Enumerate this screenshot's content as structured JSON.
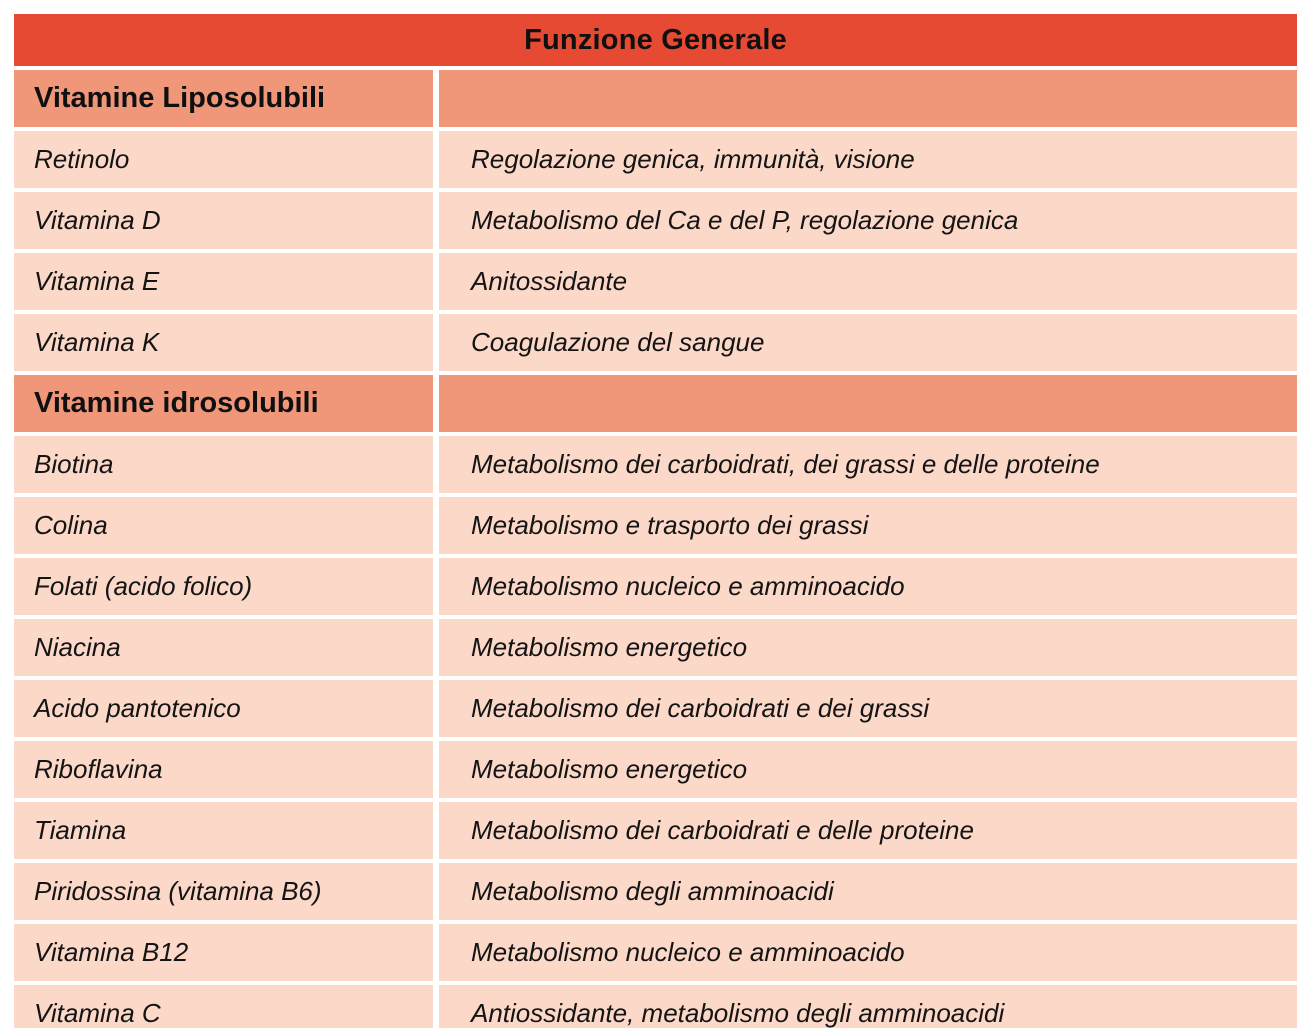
{
  "table": {
    "header": "Funzione Generale",
    "colors": {
      "header_bg": "#E64A33",
      "section_bg": "#F0977A",
      "row_bg": "#FBD8C8",
      "gridline": "#FFFFFF",
      "text": "#141414"
    },
    "sections": [
      {
        "title": "Vitamine Liposolubili",
        "rows": [
          {
            "name": "Retinolo",
            "funzione": "Regolazione genica, immunità, visione"
          },
          {
            "name": "Vitamina D",
            "funzione": "Metabolismo del Ca e del P, regolazione genica"
          },
          {
            "name": "Vitamina E",
            "funzione": "Anitossidante"
          },
          {
            "name": "Vitamina K",
            "funzione": "Coagulazione del sangue"
          }
        ]
      },
      {
        "title": "Vitamine idrosolubili",
        "rows": [
          {
            "name": "Biotina",
            "funzione": "Metabolismo dei carboidrati, dei grassi e delle proteine"
          },
          {
            "name": "Colina",
            "funzione": "Metabolismo e trasporto dei grassi"
          },
          {
            "name": "Folati (acido folico)",
            "funzione": "Metabolismo nucleico e amminoacido"
          },
          {
            "name": "Niacina",
            "funzione": "Metabolismo energetico"
          },
          {
            "name": "Acido pantotenico",
            "funzione": "Metabolismo dei carboidrati e dei grassi"
          },
          {
            "name": "Riboflavina",
            "funzione": "Metabolismo energetico"
          },
          {
            "name": "Tiamina",
            "funzione": "Metabolismo dei carboidrati e delle proteine"
          },
          {
            "name": "Piridossina (vitamina B6)",
            "funzione": "Metabolismo degli amminoacidi"
          },
          {
            "name": "Vitamina B12",
            "funzione": "Metabolismo nucleico e amminoacido"
          },
          {
            "name": "Vitamina C",
            "funzione": "Antiossidante, metabolismo degli amminoacidi"
          }
        ]
      }
    ]
  }
}
